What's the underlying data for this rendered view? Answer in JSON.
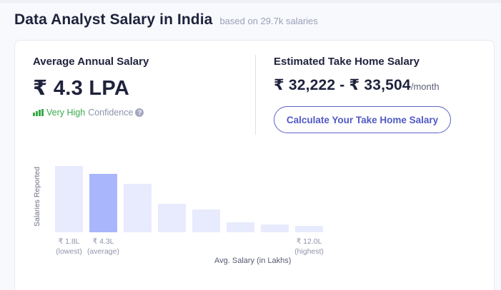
{
  "header": {
    "title": "Data Analyst Salary in India",
    "subtitle": "based on 29.7k salaries"
  },
  "average": {
    "label": "Average Annual Salary",
    "value": "₹ 4.3 LPA",
    "confidence_level": "Very High",
    "confidence_text": "Confidence",
    "help_icon": "?"
  },
  "take_home": {
    "label": "Estimated Take Home Salary",
    "range": "₹ 32,222 - ₹ 33,504",
    "unit": "/month",
    "button_label": "Calculate Your Take Home Salary"
  },
  "colors": {
    "accent": "#5159c4",
    "bar": "#e8ebfd",
    "bar_highlight": "#aab6fb",
    "confidence_green": "#3aaa4c"
  },
  "chart_data": {
    "type": "bar",
    "title": "",
    "xlabel": "Avg. Salary (in Lakhs)",
    "ylabel": "Salaries Reported",
    "categories": [
      "₹ 1.8L",
      "",
      "",
      "",
      "",
      "",
      "",
      "₹ 12.0L"
    ],
    "values": [
      93,
      82,
      68,
      40,
      32,
      14,
      11,
      9
    ],
    "highlight_index": 1,
    "annotations": [
      {
        "bar": 0,
        "value": "₹ 1.8L",
        "note": "(lowest)"
      },
      {
        "bar": 1,
        "value": "₹ 4.3L",
        "note": "(average)"
      },
      {
        "bar": 7,
        "value": "₹ 12.0L",
        "note": "(highest)"
      }
    ],
    "grid": false
  }
}
